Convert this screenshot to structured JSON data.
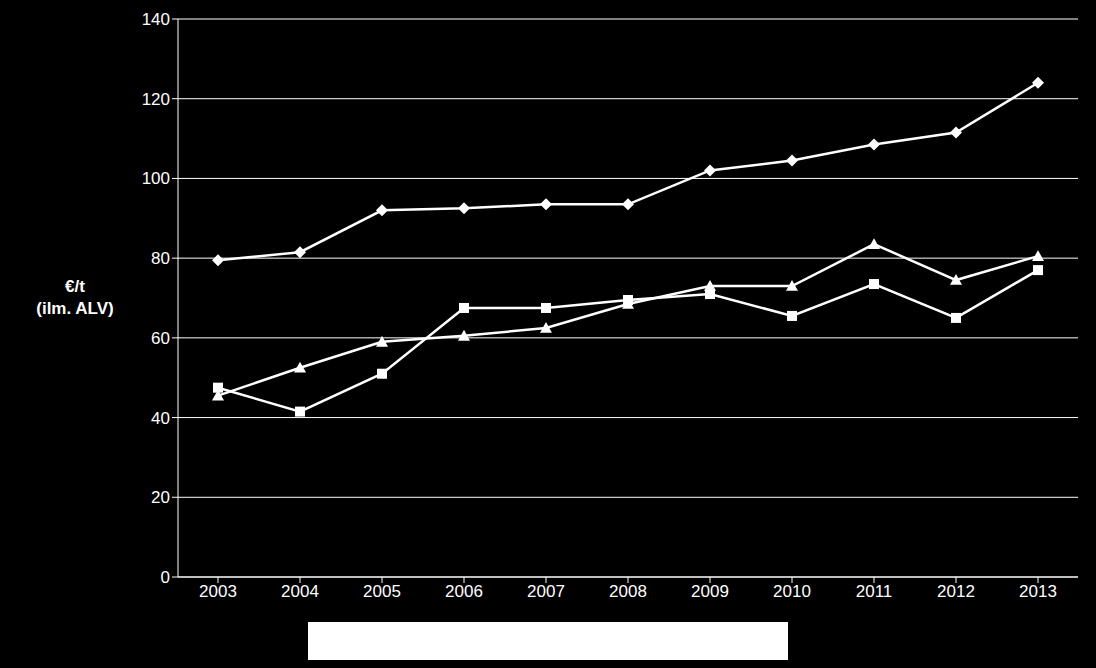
{
  "chart_data": {
    "type": "line",
    "y_label": "€/t (ilm. ALV)",
    "categories": [
      "2003",
      "2004",
      "2005",
      "2006",
      "2007",
      "2008",
      "2009",
      "2010",
      "2011",
      "2012",
      "2013"
    ],
    "series": [
      {
        "color": "#ffffff",
        "marker": "diamond",
        "values": [
          79.5,
          81.5,
          92,
          92.5,
          93.5,
          93.5,
          102,
          104.5,
          108.5,
          111.5,
          124
        ]
      },
      {
        "color": "#ffffff",
        "marker": "triangle",
        "values": [
          45.5,
          52.5,
          59,
          60.5,
          62.5,
          68.5,
          73,
          73,
          83.5,
          74.5,
          80.5
        ]
      },
      {
        "color": "#ffffff",
        "marker": "square",
        "values": [
          47.5,
          41.5,
          51,
          67.5,
          67.5,
          69.5,
          71,
          65.5,
          73.5,
          65,
          77
        ]
      }
    ],
    "ylim": [
      0,
      140
    ],
    "yticks": [
      0,
      20,
      40,
      60,
      80,
      100,
      120,
      140
    ],
    "grid": true
  }
}
